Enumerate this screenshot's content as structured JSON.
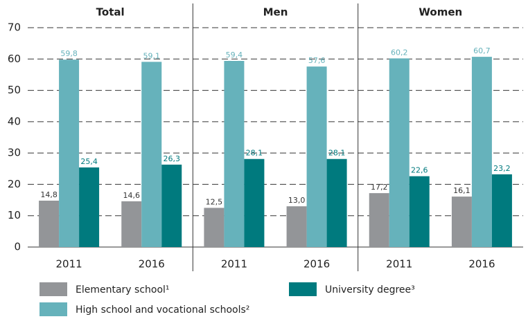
{
  "chart_data": {
    "type": "bar",
    "panels": [
      "Total",
      "Men",
      "Women"
    ],
    "categories": [
      "2011",
      "2016",
      "2011",
      "2016",
      "2011",
      "2016"
    ],
    "series": [
      {
        "name": "Elementary school¹",
        "color": "#939598",
        "values": [
          14.8,
          14.6,
          12.5,
          13.0,
          17.2,
          16.1
        ],
        "value_labels": [
          "14,8",
          "14,6",
          "12,5",
          "13,0",
          "17,2",
          "16,1"
        ]
      },
      {
        "name": "High school and vocational schools²",
        "color": "#66b2bb",
        "values": [
          59.8,
          59.1,
          59.4,
          57.6,
          60.2,
          60.7
        ],
        "value_labels": [
          "59,8",
          "59,1",
          "59,4",
          "57,6",
          "60,2",
          "60,7"
        ]
      },
      {
        "name": "University degree³",
        "color": "#007a7e",
        "values": [
          25.4,
          26.3,
          28.1,
          28.1,
          22.6,
          23.2
        ],
        "value_labels": [
          "25,4",
          "26,3",
          "28,1",
          "28,1",
          "22,6",
          "23,2"
        ]
      }
    ],
    "ylim": [
      0,
      70
    ],
    "yticks": [
      0,
      10,
      20,
      30,
      40,
      50,
      60,
      70
    ],
    "grid": true
  }
}
